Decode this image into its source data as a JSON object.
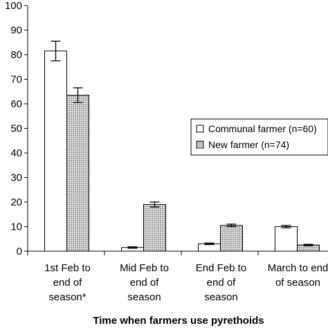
{
  "chart_data": {
    "type": "bar",
    "title": "",
    "xlabel": "Time when farmers use pyrethoids",
    "ylabel": "",
    "ylim": [
      0,
      100
    ],
    "yticks": [
      0,
      10,
      20,
      30,
      40,
      50,
      60,
      70,
      80,
      90,
      100
    ],
    "grid": false,
    "legend_position": "right",
    "categories": [
      [
        "1st Feb to",
        "end of",
        "season*"
      ],
      [
        "Mid Feb to",
        "end of",
        "season"
      ],
      [
        "End Feb to",
        "end of",
        "season"
      ],
      [
        "March to end",
        "of season"
      ]
    ],
    "series": [
      {
        "name": "Communal farmer (n=60)",
        "pattern": "white",
        "values": [
          81.5,
          1.5,
          3,
          10
        ],
        "errors": [
          4,
          0.3,
          0.3,
          0.5
        ]
      },
      {
        "name": "New farmer (n=74)",
        "pattern": "dotted",
        "values": [
          63.5,
          19,
          10.5,
          2.5
        ],
        "errors": [
          3,
          1,
          0.5,
          0.3
        ]
      }
    ],
    "colors": {
      "bar_fill": "#ffffff",
      "dot_fill": "#d8d8d8",
      "dot_color": "#333333",
      "stroke": "#000000"
    }
  }
}
